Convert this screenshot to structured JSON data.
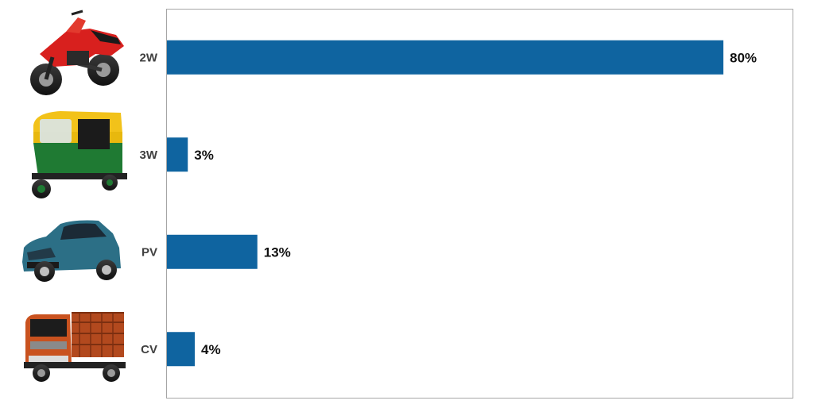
{
  "chart_data": {
    "type": "bar",
    "orientation": "horizontal",
    "categories": [
      "2W",
      "3W",
      "PV",
      "CV"
    ],
    "values": [
      80,
      3,
      13,
      4
    ],
    "value_labels": [
      "80%",
      "3%",
      "13%",
      "4%"
    ],
    "unit": "%",
    "xlim": [
      0,
      90
    ],
    "grid": false,
    "legend": "none",
    "bar_color": "#0f64a0",
    "category_icons": [
      "motorcycle-icon",
      "auto-rickshaw-icon",
      "hatchback-car-icon",
      "truck-icon"
    ]
  }
}
